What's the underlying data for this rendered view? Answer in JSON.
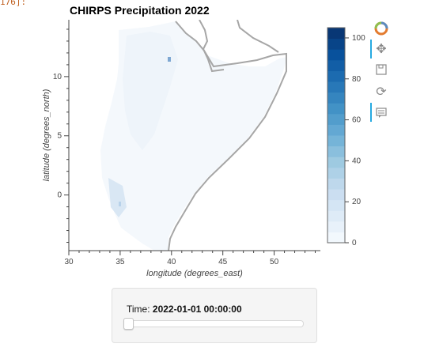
{
  "cell_output_stub": "176]:",
  "chart_data": {
    "type": "heatmap",
    "title": "CHIRPS Precipitation 2022",
    "xlabel": "longitude (degrees_east)",
    "ylabel": "latitude (degrees_north)",
    "xlim": [
      30,
      54.5
    ],
    "ylim": [
      -4.7,
      14.8
    ],
    "x_ticks": [
      30,
      35,
      40,
      45,
      50
    ],
    "y_ticks": [
      0,
      5,
      10
    ],
    "colorbar": {
      "range": [
        0,
        105
      ],
      "ticks": [
        0,
        20,
        40,
        60,
        80,
        100
      ],
      "colormap": [
        "#f7fbff",
        "#deebf7",
        "#c6dbef",
        "#9ecae1",
        "#6baed6",
        "#4292c6",
        "#2171b5",
        "#08519c",
        "#08306b"
      ]
    },
    "grid": false
  },
  "toolbar": {
    "items": [
      {
        "name": "bokeh-logo-icon",
        "glyph": ""
      },
      {
        "name": "pan-tool-icon",
        "glyph": "✥"
      },
      {
        "name": "box-zoom-tool-icon",
        "glyph": "⬚"
      },
      {
        "name": "reset-tool-icon",
        "glyph": "⟳"
      },
      {
        "name": "hover-tool-icon",
        "glyph": "▤"
      }
    ]
  },
  "time_slider": {
    "label": "Time:",
    "value": "2022-01-01 00:00:00",
    "position": 0
  }
}
